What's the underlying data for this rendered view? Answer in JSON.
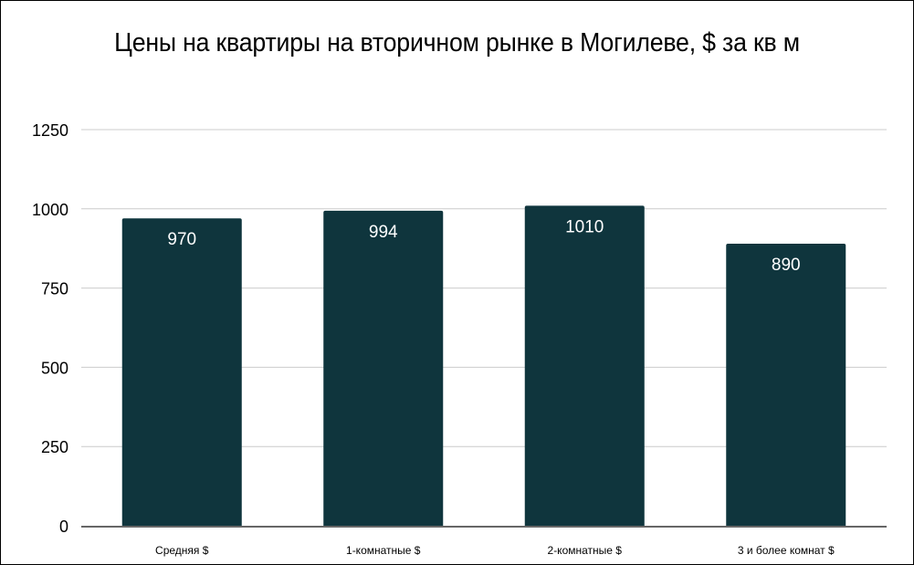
{
  "chart_data": {
    "type": "bar",
    "title": "Цены на квартиры на вторичном рынке в Могилеве, $ за кв м",
    "categories": [
      "Средняя $",
      "1-комнатные $",
      "2-комнатные $",
      "3 и более комнат $"
    ],
    "values": [
      970,
      994,
      1010,
      890
    ],
    "data_labels": [
      "970",
      "994",
      "1010",
      "890"
    ],
    "ylim": [
      0,
      1250
    ],
    "yticks": [
      0,
      250,
      500,
      750,
      1000,
      1250
    ],
    "xlabel": "",
    "ylabel": "",
    "grid": true,
    "legend": "none",
    "bar_color": "#0f353d",
    "label_color": "#ffffff"
  }
}
